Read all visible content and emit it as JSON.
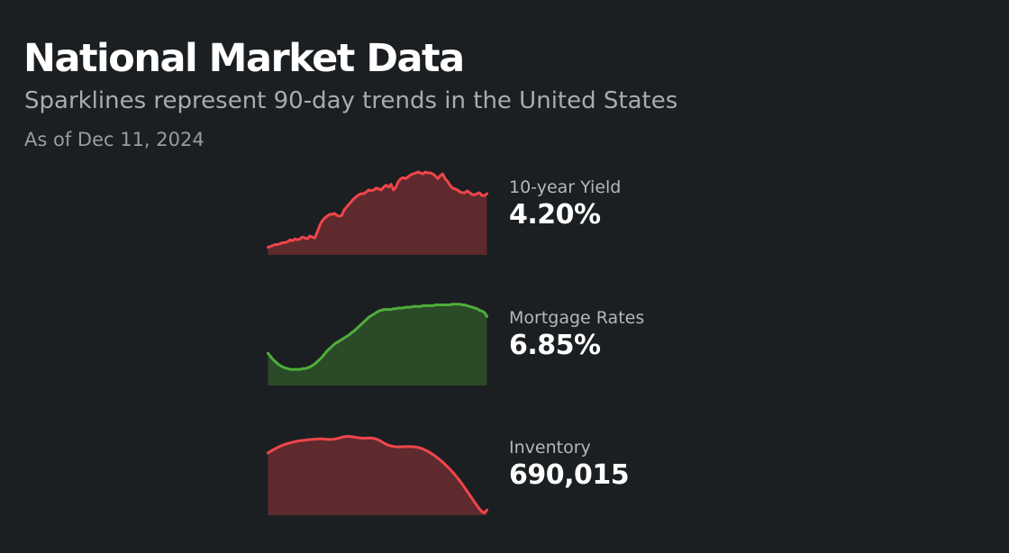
{
  "header": {
    "title": "National Market Data",
    "subtitle": "Sparklines represent 90-day trends in the United States",
    "as_of": "As of Dec 11, 2024"
  },
  "colors": {
    "background": "#1b1f22",
    "red_line": "#f0454a",
    "red_fill": "#5e2a2d",
    "green_line": "#4fae3b",
    "green_fill": "#2a4a28"
  },
  "chart_data": [
    {
      "type": "area",
      "name": "10-year Yield",
      "value_label": "4.20%",
      "trend": "up",
      "x_count": 90,
      "values": [
        3.63,
        3.64,
        3.65,
        3.66,
        3.66,
        3.67,
        3.68,
        3.68,
        3.69,
        3.71,
        3.7,
        3.72,
        3.71,
        3.72,
        3.74,
        3.73,
        3.72,
        3.75,
        3.74,
        3.73,
        3.79,
        3.86,
        3.91,
        3.94,
        3.96,
        3.98,
        3.98,
        3.99,
        3.97,
        3.96,
        3.97,
        4.03,
        4.06,
        4.09,
        4.12,
        4.15,
        4.17,
        4.19,
        4.2,
        4.2,
        4.22,
        4.24,
        4.23,
        4.24,
        4.26,
        4.25,
        4.24,
        4.27,
        4.29,
        4.27,
        4.3,
        4.24,
        4.27,
        4.33,
        4.36,
        4.37,
        4.36,
        4.38,
        4.4,
        4.41,
        4.42,
        4.43,
        4.42,
        4.41,
        4.43,
        4.42,
        4.42,
        4.41,
        4.39,
        4.36,
        4.39,
        4.41,
        4.36,
        4.33,
        4.29,
        4.26,
        4.25,
        4.24,
        4.22,
        4.21,
        4.21,
        4.23,
        4.21,
        4.19,
        4.19,
        4.2,
        4.21,
        4.18,
        4.18,
        4.2
      ],
      "ylim": [
        3.55,
        4.43
      ],
      "line_color": "#f0454a",
      "fill_color": "#5e2a2d"
    },
    {
      "type": "area",
      "name": "Mortgage Rates",
      "value_label": "6.85%",
      "trend": "up",
      "x_count": 90,
      "values": [
        6.37,
        6.33,
        6.29,
        6.26,
        6.23,
        6.21,
        6.19,
        6.18,
        6.17,
        6.16,
        6.16,
        6.16,
        6.16,
        6.16,
        6.17,
        6.17,
        6.18,
        6.19,
        6.21,
        6.23,
        6.26,
        6.29,
        6.32,
        6.36,
        6.4,
        6.43,
        6.46,
        6.49,
        6.51,
        6.53,
        6.55,
        6.57,
        6.59,
        6.61,
        6.64,
        6.66,
        6.69,
        6.72,
        6.75,
        6.78,
        6.81,
        6.84,
        6.86,
        6.88,
        6.9,
        6.92,
        6.93,
        6.94,
        6.94,
        6.94,
        6.94,
        6.95,
        6.95,
        6.96,
        6.96,
        6.96,
        6.97,
        6.97,
        6.97,
        6.98,
        6.98,
        6.98,
        6.98,
        6.99,
        6.99,
        6.99,
        6.99,
        6.99,
        7.0,
        7.0,
        7.0,
        7.0,
        7.0,
        7.0,
        7.0,
        7.01,
        7.01,
        7.01,
        7.01,
        7.0,
        7.0,
        6.99,
        6.98,
        6.97,
        6.96,
        6.95,
        6.93,
        6.92,
        6.9,
        6.85
      ],
      "ylim": [
        5.95,
        7.03
      ],
      "line_color": "#4fae3b",
      "fill_color": "#2a4a28"
    },
    {
      "type": "area",
      "name": "Inventory",
      "value_label": "690,015",
      "trend": "down",
      "x_count": 90,
      "values": [
        744300,
        745800,
        747200,
        748500,
        749700,
        750800,
        751800,
        752600,
        753300,
        754000,
        754600,
        755100,
        755600,
        756000,
        756300,
        756500,
        756800,
        757100,
        757200,
        757400,
        757600,
        757800,
        757800,
        757500,
        757300,
        757100,
        757200,
        757500,
        758000,
        758600,
        759300,
        759800,
        760000,
        760000,
        759800,
        759500,
        759000,
        758700,
        758500,
        758300,
        758500,
        758600,
        758500,
        758200,
        757600,
        756600,
        755300,
        753900,
        752700,
        751700,
        751000,
        750500,
        750300,
        750200,
        750200,
        750300,
        750400,
        750400,
        750400,
        750300,
        750000,
        749600,
        749000,
        748100,
        747000,
        745800,
        744400,
        742900,
        741300,
        739500,
        737600,
        735600,
        733400,
        731100,
        728700,
        726200,
        723500,
        720600,
        717600,
        714400,
        711000,
        707600,
        704200,
        700700,
        697300,
        694000,
        690800,
        688400,
        687100,
        690015
      ],
      "ylim": [
        685000,
        764000
      ],
      "line_color": "#f0454a",
      "fill_color": "#5e2a2d"
    }
  ]
}
